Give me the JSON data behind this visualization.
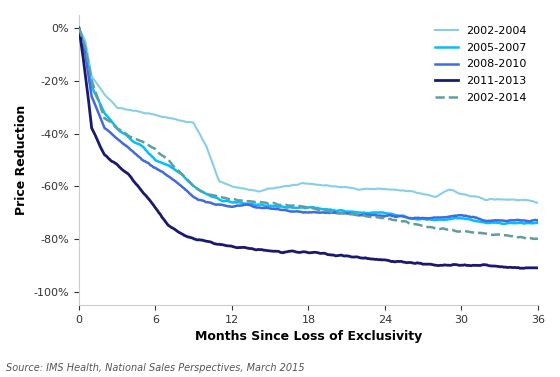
{
  "title": "",
  "xlabel": "Months Since Loss of Exclusivity",
  "ylabel": "Price Reduction",
  "source": "Source: IMS Health, National Sales Perspectives, March 2015",
  "xlim": [
    0,
    36
  ],
  "ylim": [
    -1.05,
    0.05
  ],
  "yticks": [
    0,
    -0.2,
    -0.4,
    -0.6,
    -0.8,
    -1.0
  ],
  "xticks": [
    0,
    6,
    12,
    18,
    24,
    30,
    36
  ],
  "series": {
    "2002-2004": {
      "color": "#87CEEB",
      "linestyle": "solid",
      "linewidth": 1.5,
      "zorder": 2
    },
    "2005-2007": {
      "color": "#00BFFF",
      "linestyle": "solid",
      "linewidth": 1.8,
      "zorder": 3
    },
    "2008-2010": {
      "color": "#4169E1",
      "linestyle": "solid",
      "linewidth": 1.8,
      "zorder": 4
    },
    "2011-2013": {
      "color": "#191970",
      "linestyle": "solid",
      "linewidth": 2.0,
      "zorder": 5
    },
    "2002-2014": {
      "color": "#5F9EA0",
      "linestyle": "dashed",
      "linewidth": 1.8,
      "zorder": 6
    }
  },
  "background_color": "#ffffff",
  "grid": false
}
